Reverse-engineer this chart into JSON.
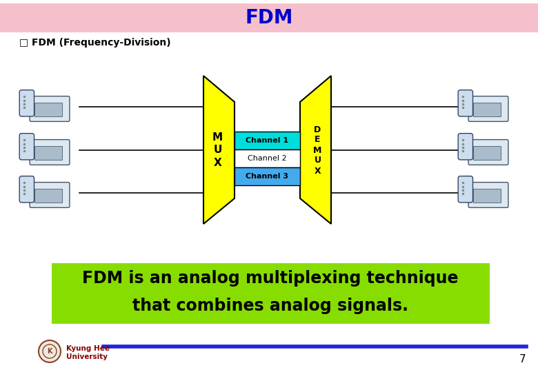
{
  "title": "FDM",
  "title_bg": "#f5c0cc",
  "title_color": "#0000cc",
  "subtitle": "□ FDM (Frequency-Division)",
  "subtitle_color": "#000000",
  "mux_color": "#ffff00",
  "mux_border": "#000000",
  "channel1_color": "#00dddd",
  "channel2_color": "#ffffff",
  "channel3_color": "#44aaee",
  "channel_border": "#000000",
  "line_color": "#000000",
  "description_bg": "#88dd00",
  "description_line1": "FDM is an analog multiplexing technique",
  "description_line2": "that combines analog signals.",
  "description_color": "#000000",
  "footer_line_color": "#2222dd",
  "page_number": "7",
  "bg_color": "#ffffff"
}
